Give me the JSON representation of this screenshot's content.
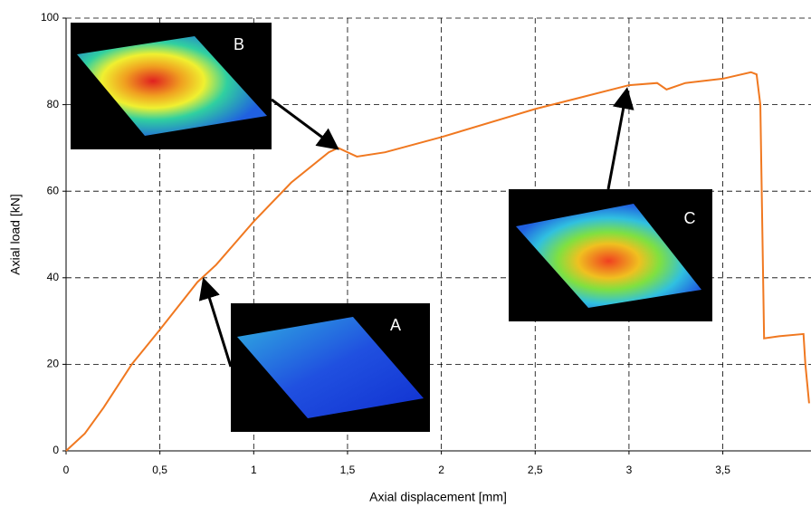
{
  "chart_data": {
    "type": "line",
    "x_label": "Axial displacement [mm]",
    "y_label": "Axial load [kN]",
    "x": [
      0,
      0.1,
      0.2,
      0.35,
      0.5,
      0.7,
      0.8,
      1,
      1.2,
      1.4,
      1.45,
      1.55,
      1.7,
      2,
      2.5,
      3,
      3.15,
      3.2,
      3.3,
      3.5,
      3.65,
      3.68,
      3.7,
      3.72,
      3.8,
      3.93,
      3.94,
      3.96
    ],
    "series": [
      {
        "name": "Axial load",
        "color": "#f07820",
        "values": [
          0,
          4,
          10,
          20,
          28,
          39,
          43,
          53,
          62,
          69,
          70,
          68,
          69,
          72.5,
          79,
          84.5,
          85,
          83.5,
          85,
          86,
          87.5,
          87,
          80,
          26,
          26.5,
          27,
          20,
          11
        ]
      }
    ],
    "xlim": [
      0,
      3.97
    ],
    "ylim": [
      0,
      100
    ],
    "xticks": [
      0,
      {
        "value": 0.5,
        "label": "0,5"
      },
      1,
      {
        "value": 1.5,
        "label": "1,5"
      },
      2,
      {
        "value": 2.5,
        "label": "2,5"
      },
      3,
      {
        "value": 3.5,
        "label": "3,5"
      }
    ],
    "yticks": [
      0,
      20,
      40,
      60,
      80,
      100
    ],
    "grid": true,
    "annotations": [
      "A",
      "B",
      "C"
    ]
  }
}
